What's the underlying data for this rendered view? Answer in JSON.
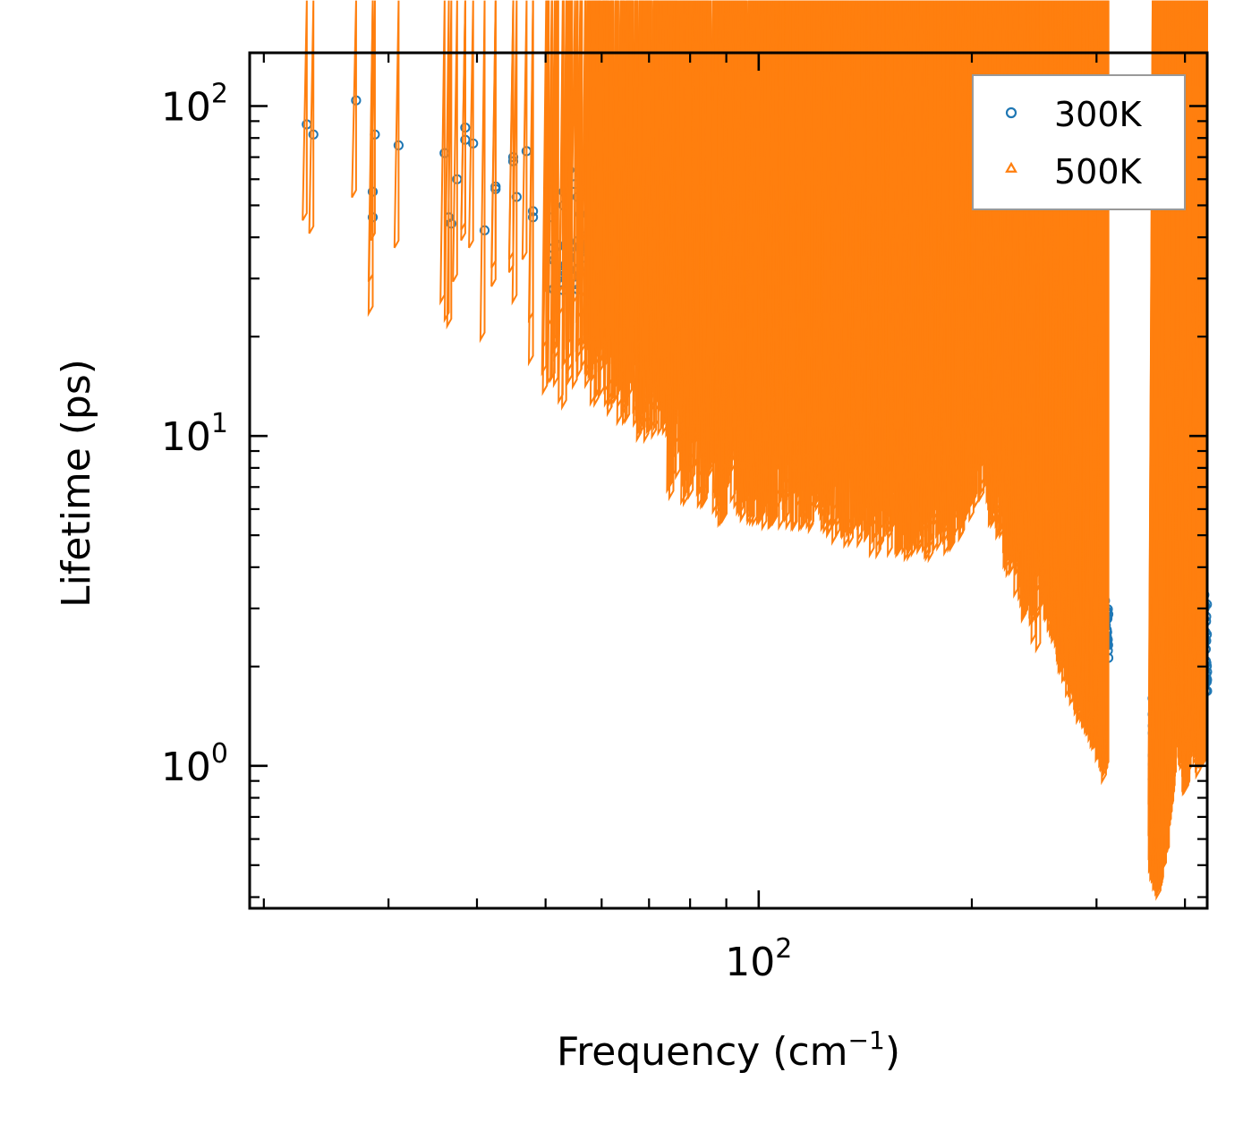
{
  "chart_data": {
    "type": "scatter",
    "title": "",
    "xlabel": "Frequency (cm",
    "xlabel_sup": "−1",
    "xlabel_close": ")",
    "ylabel": "Lifetime (ps)",
    "xscale": "log",
    "yscale": "log",
    "xlim": [
      19.1,
      430
    ],
    "ylim": [
      0.37,
      145
    ],
    "x_tick_labels": [
      {
        "value": 100,
        "base": "10",
        "exp": "2"
      }
    ],
    "y_tick_labels": [
      {
        "value": 1,
        "base": "10",
        "exp": "0"
      },
      {
        "value": 10,
        "base": "10",
        "exp": "1"
      },
      {
        "value": 100,
        "base": "10",
        "exp": "2"
      }
    ],
    "legend_position": "top-right",
    "series": [
      {
        "name": "300K",
        "color": "#1f77b4",
        "marker": "circle-open",
        "shape": {
          "lo_mult": 2.35,
          "lo_mult2": 1.45,
          "hi_mult": 1.55
        },
        "points": [
          [
            23,
            88
          ],
          [
            23.5,
            82
          ],
          [
            27,
            104
          ],
          [
            28.5,
            55
          ],
          [
            28.5,
            46
          ],
          [
            28.7,
            82
          ],
          [
            31,
            76
          ],
          [
            36,
            72
          ],
          [
            36.5,
            46
          ],
          [
            36.8,
            44
          ],
          [
            37.5,
            60
          ],
          [
            38.5,
            86
          ],
          [
            38.5,
            79
          ],
          [
            39.5,
            77
          ],
          [
            41,
            42
          ],
          [
            42.5,
            57
          ],
          [
            42.5,
            56
          ],
          [
            45,
            70
          ],
          [
            45,
            68
          ],
          [
            45.5,
            53
          ],
          [
            47,
            73
          ],
          [
            48,
            48
          ],
          [
            48,
            46
          ],
          [
            50.5,
            59
          ],
          [
            50.5,
            58
          ],
          [
            51,
            46
          ],
          [
            52,
            38
          ],
          [
            53,
            55
          ],
          [
            53,
            50
          ],
          [
            54,
            64
          ],
          [
            55,
            58
          ],
          [
            55.5,
            53
          ],
          [
            56,
            47
          ],
          [
            56,
            62
          ],
          [
            57,
            54
          ],
          [
            58,
            40
          ],
          [
            60,
            37
          ],
          [
            61,
            39
          ],
          [
            62,
            42
          ],
          [
            63,
            35
          ],
          [
            64,
            29
          ],
          [
            66,
            55
          ],
          [
            66,
            46
          ],
          [
            67,
            44
          ],
          [
            68,
            38
          ],
          [
            70,
            51
          ],
          [
            71,
            50
          ],
          [
            72,
            44
          ],
          [
            74,
            52
          ],
          [
            76,
            44
          ],
          [
            76,
            40
          ],
          [
            77,
            39
          ],
          [
            78,
            46
          ],
          [
            80,
            31
          ],
          [
            85,
            34
          ],
          [
            87,
            33
          ],
          [
            95,
            30
          ],
          [
            98,
            32
          ],
          [
            100,
            31
          ],
          [
            105,
            33
          ],
          [
            110,
            29
          ],
          [
            115,
            36
          ],
          [
            120,
            37
          ],
          [
            125,
            30
          ],
          [
            130,
            31
          ],
          [
            140,
            30
          ],
          [
            150,
            28
          ],
          [
            175,
            25
          ],
          [
            200,
            35
          ],
          [
            206,
            33
          ]
        ],
        "envelope": [
          [
            50,
            38
          ],
          [
            55,
            40
          ],
          [
            60,
            41
          ],
          [
            63,
            37
          ],
          [
            66,
            35
          ],
          [
            70,
            33
          ],
          [
            74,
            32
          ],
          [
            78,
            33
          ],
          [
            82,
            31
          ],
          [
            88,
            30
          ],
          [
            95,
            29
          ],
          [
            100,
            27
          ],
          [
            110,
            26
          ],
          [
            120,
            27
          ],
          [
            130,
            26
          ],
          [
            140,
            24
          ],
          [
            150,
            25
          ],
          [
            165,
            24
          ],
          [
            180,
            23
          ],
          [
            195,
            26
          ],
          [
            205,
            34
          ],
          [
            212,
            32
          ],
          [
            220,
            27
          ],
          [
            230,
            22
          ],
          [
            240,
            18
          ],
          [
            250,
            15
          ],
          [
            260,
            12
          ],
          [
            270,
            9
          ],
          [
            280,
            7
          ],
          [
            290,
            5.5
          ],
          [
            300,
            4.2
          ],
          [
            308,
            3.2
          ],
          [
            312,
            2.9
          ]
        ]
      },
      {
        "name": "500K",
        "color": "#ff7f0e",
        "marker": "triangle-open",
        "shape": {
          "lo_mult": 2.5,
          "lo_mult2": 1.6,
          "hi_mult": 1.6
        },
        "points": [
          [
            23,
            46
          ],
          [
            23.5,
            42
          ],
          [
            27,
            54
          ],
          [
            28.5,
            30
          ],
          [
            28.5,
            24
          ],
          [
            28.7,
            40
          ],
          [
            31,
            38
          ],
          [
            36,
            26
          ],
          [
            36.5,
            23
          ],
          [
            36.8,
            22
          ],
          [
            37.5,
            30
          ],
          [
            38.5,
            43
          ],
          [
            38.5,
            40
          ],
          [
            39.5,
            38
          ],
          [
            41,
            20
          ],
          [
            42.5,
            29
          ],
          [
            42.5,
            33
          ],
          [
            45,
            35
          ],
          [
            45,
            32
          ],
          [
            45.5,
            26
          ],
          [
            47,
            35
          ],
          [
            48,
            23
          ],
          [
            48,
            17
          ],
          [
            50.5,
            29
          ],
          [
            50.5,
            28
          ],
          [
            51,
            22
          ],
          [
            52,
            19
          ],
          [
            53,
            28
          ],
          [
            53,
            24
          ],
          [
            54,
            31
          ],
          [
            55,
            29
          ],
          [
            55.5,
            26
          ],
          [
            56,
            23
          ],
          [
            57,
            27
          ],
          [
            58,
            19
          ],
          [
            60,
            18
          ],
          [
            61,
            19
          ],
          [
            62,
            20
          ],
          [
            63,
            17
          ],
          [
            64,
            15
          ],
          [
            66,
            27
          ],
          [
            66,
            24
          ],
          [
            67,
            22
          ],
          [
            68,
            19
          ],
          [
            70,
            25
          ],
          [
            71,
            24
          ],
          [
            72,
            22
          ],
          [
            74,
            25
          ],
          [
            76,
            22
          ],
          [
            76,
            20
          ],
          [
            78,
            22
          ],
          [
            80,
            15
          ],
          [
            85,
            17
          ],
          [
            87,
            16
          ],
          [
            95,
            15
          ],
          [
            100,
            16
          ],
          [
            105,
            17
          ],
          [
            110,
            15
          ],
          [
            115,
            18
          ],
          [
            120,
            18
          ],
          [
            130,
            16
          ],
          [
            140,
            15
          ],
          [
            150,
            15
          ],
          [
            175,
            13
          ],
          [
            200,
            18
          ],
          [
            206,
            17
          ]
        ],
        "envelope": [
          [
            50,
            19
          ],
          [
            55,
            20
          ],
          [
            60,
            20
          ],
          [
            63,
            18
          ],
          [
            66,
            17
          ],
          [
            70,
            16
          ],
          [
            74,
            16
          ],
          [
            78,
            16
          ],
          [
            82,
            15
          ],
          [
            88,
            14
          ],
          [
            95,
            14
          ],
          [
            100,
            13
          ],
          [
            110,
            13
          ],
          [
            120,
            13
          ],
          [
            130,
            12
          ],
          [
            140,
            12
          ],
          [
            150,
            11
          ],
          [
            165,
            11
          ],
          [
            180,
            11
          ],
          [
            195,
            12
          ],
          [
            205,
            16
          ],
          [
            212,
            15
          ],
          [
            220,
            12
          ],
          [
            230,
            9
          ],
          [
            240,
            7
          ],
          [
            250,
            5.5
          ],
          [
            260,
            4
          ],
          [
            270,
            3
          ],
          [
            280,
            2.5
          ],
          [
            290,
            2.1
          ],
          [
            300,
            1.8
          ],
          [
            308,
            1.5
          ],
          [
            312,
            1.4
          ]
        ]
      }
    ],
    "high_clusters": [
      {
        "series": "300K",
        "envelope": [
          [
            360,
            1.7
          ],
          [
            365,
            1.6
          ],
          [
            370,
            1.65
          ],
          [
            375,
            1.8
          ],
          [
            380,
            2.0
          ],
          [
            385,
            2.6
          ],
          [
            390,
            3.5
          ],
          [
            393,
            4.3
          ],
          [
            397,
            3.4
          ],
          [
            400,
            2.8
          ],
          [
            405,
            2.7
          ],
          [
            410,
            3.4
          ],
          [
            414,
            3.8
          ],
          [
            418,
            2.9
          ],
          [
            422,
            3.1
          ],
          [
            426,
            3.3
          ],
          [
            430,
            3.1
          ],
          [
            433,
            3.2
          ],
          [
            436,
            2.4
          ],
          [
            440,
            1.5
          ]
        ],
        "lo_mult": 1.9
      },
      {
        "series": "500K",
        "envelope": [
          [
            360,
            0.95
          ],
          [
            365,
            0.85
          ],
          [
            370,
            0.8
          ],
          [
            375,
            0.95
          ],
          [
            380,
            1.1
          ],
          [
            385,
            1.5
          ],
          [
            390,
            2.0
          ],
          [
            393,
            2.6
          ],
          [
            397,
            2.1
          ],
          [
            400,
            1.7
          ],
          [
            405,
            1.6
          ],
          [
            410,
            2.1
          ],
          [
            414,
            2.5
          ],
          [
            418,
            1.8
          ],
          [
            422,
            1.9
          ],
          [
            426,
            2.1
          ],
          [
            430,
            1.9
          ],
          [
            433,
            2.0
          ],
          [
            436,
            1.5
          ],
          [
            440,
            1.0
          ]
        ],
        "lo_mult": 2.0
      }
    ]
  }
}
